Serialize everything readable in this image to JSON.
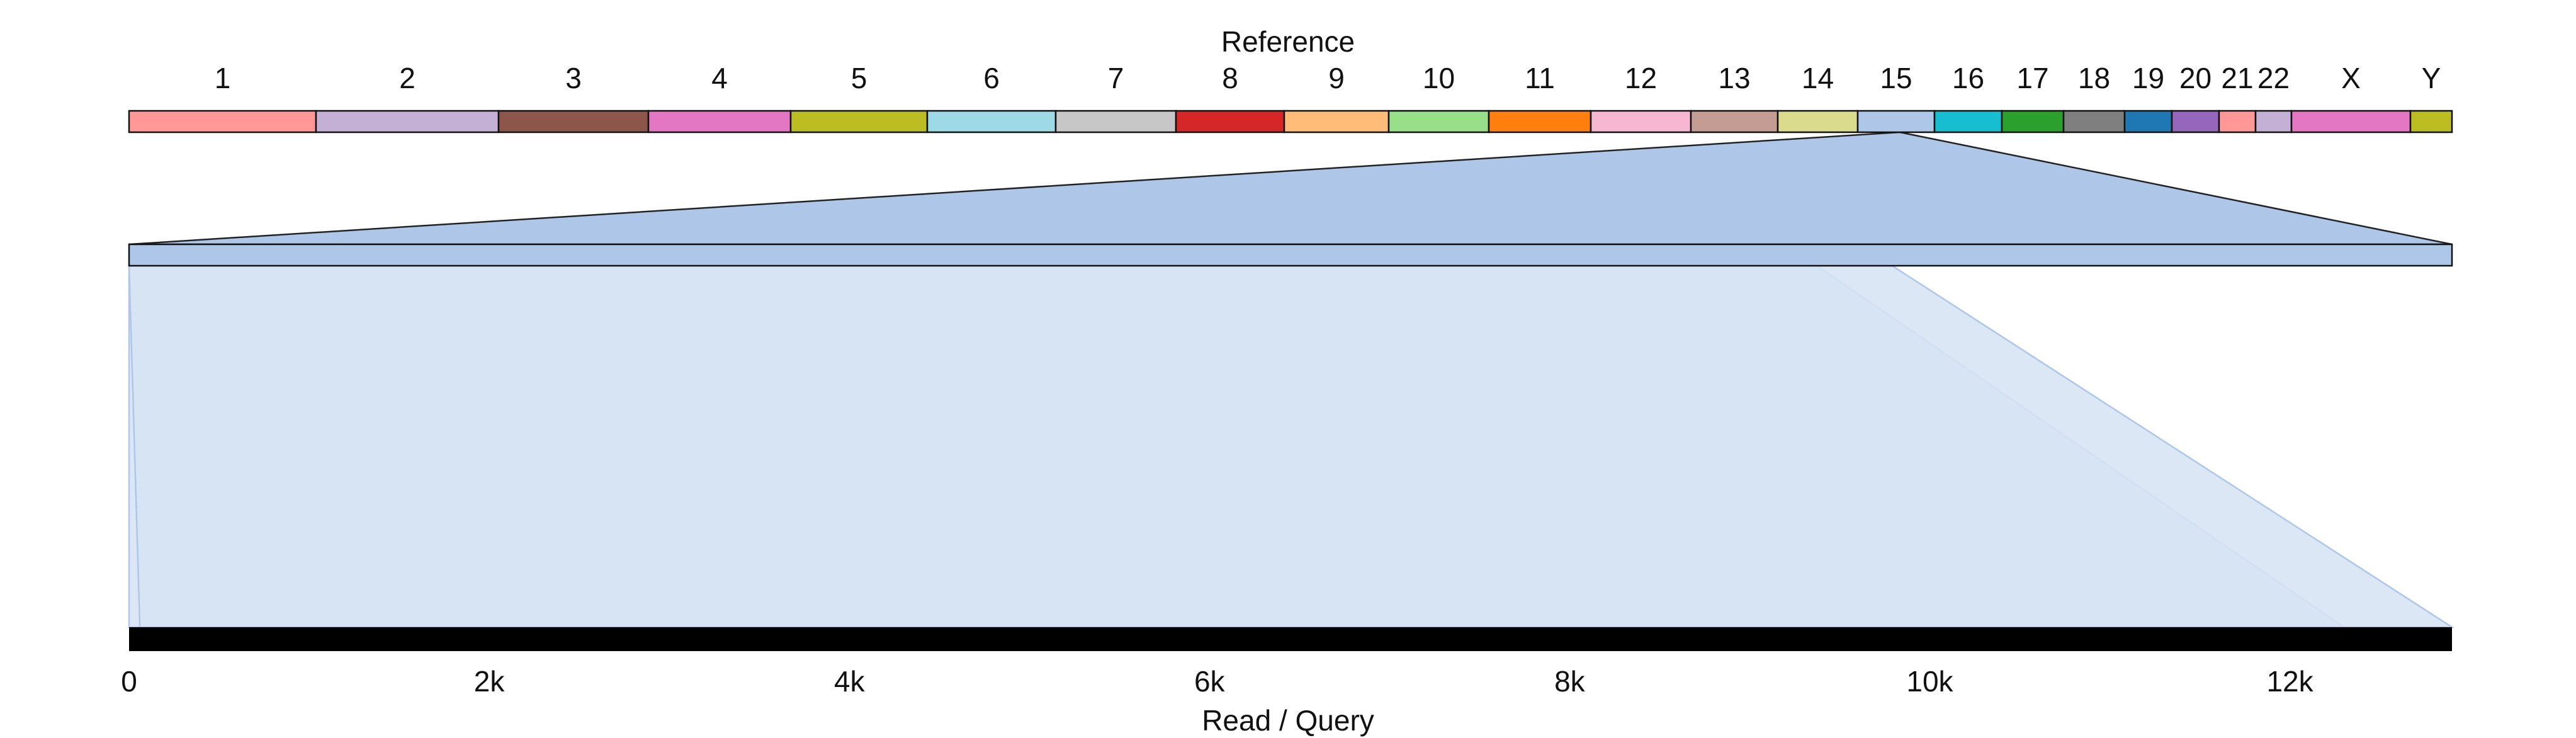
{
  "reference": {
    "title": "Reference",
    "chromosomes": [
      {
        "name": "1",
        "color": "#ff9896"
      },
      {
        "name": "2",
        "color": "#c5b0d5"
      },
      {
        "name": "3",
        "color": "#8c564b"
      },
      {
        "name": "4",
        "color": "#e377c2"
      },
      {
        "name": "5",
        "color": "#bcbd22"
      },
      {
        "name": "6",
        "color": "#9edae5"
      },
      {
        "name": "7",
        "color": "#c7c7c7"
      },
      {
        "name": "8",
        "color": "#d62728"
      },
      {
        "name": "9",
        "color": "#ffbb78"
      },
      {
        "name": "10",
        "color": "#98df8a"
      },
      {
        "name": "11",
        "color": "#ff7f0e"
      },
      {
        "name": "12",
        "color": "#f7b6d2"
      },
      {
        "name": "13",
        "color": "#c49c94"
      },
      {
        "name": "14",
        "color": "#dbdb8d"
      },
      {
        "name": "15",
        "color": "#aec7e8"
      },
      {
        "name": "16",
        "color": "#17becf"
      },
      {
        "name": "17",
        "color": "#2ca02c"
      },
      {
        "name": "18",
        "color": "#7f7f7f"
      },
      {
        "name": "19",
        "color": "#1f77b4"
      },
      {
        "name": "20",
        "color": "#9467bd"
      },
      {
        "name": "21",
        "color": "#ff9896"
      },
      {
        "name": "22",
        "color": "#c5b0d5"
      },
      {
        "name": "X",
        "color": "#e377c2"
      },
      {
        "name": "Y",
        "color": "#bcbd22"
      }
    ],
    "highlighted_chromosome": "15"
  },
  "query": {
    "title": "Read / Query",
    "ticks": [
      "0",
      "2k",
      "4k",
      "6k",
      "8k",
      "10k",
      "12k"
    ],
    "tick_values": [
      0,
      2000,
      4000,
      6000,
      8000,
      10000,
      12000
    ],
    "length": 12900
  },
  "alignments": [
    {
      "query_start": 0,
      "query_end": 12300,
      "zoom_start": 0.0,
      "zoom_end": 0.7265
    },
    {
      "query_start": 60,
      "query_end": 12900,
      "zoom_start": 0.0,
      "zoom_end": 0.759
    }
  ],
  "colors": {
    "highlight": "#aec7e8",
    "alignment_fill": "#d6e3f3",
    "alignment_stroke": "#aec7e8",
    "query_bar": "#000000"
  }
}
